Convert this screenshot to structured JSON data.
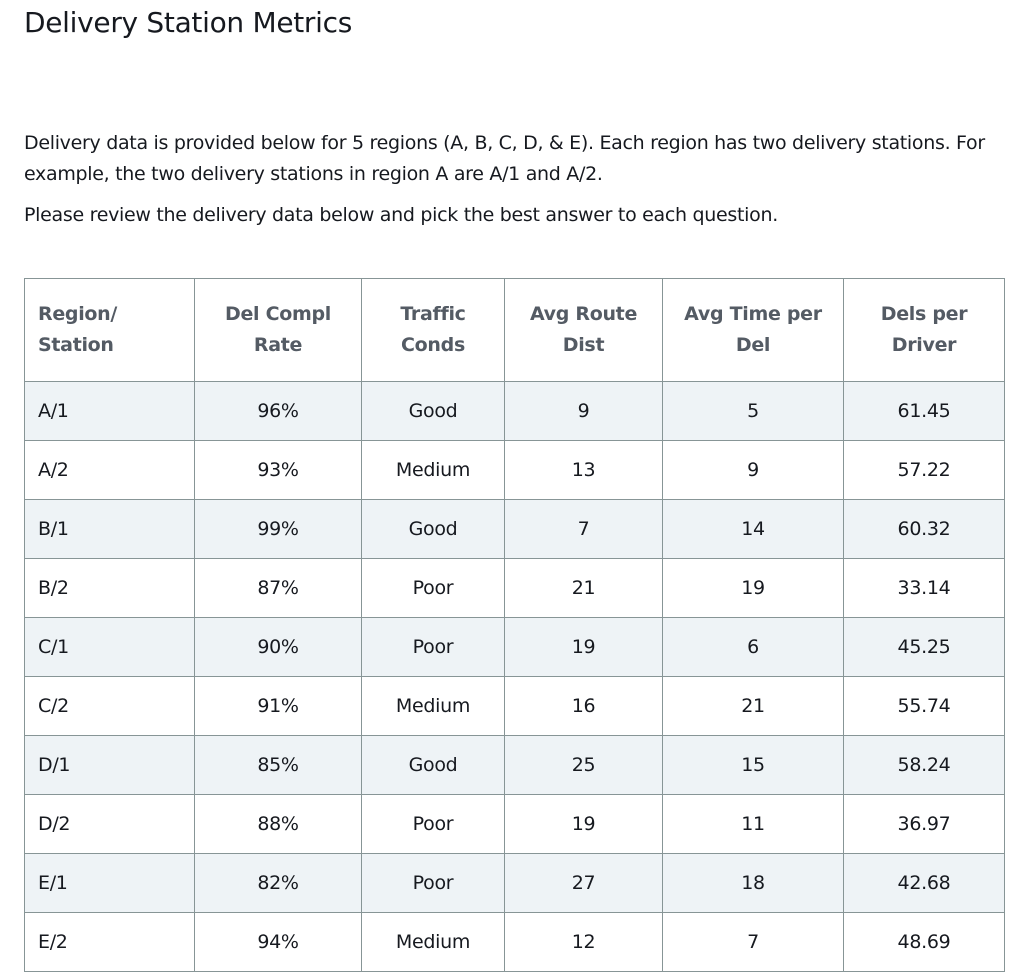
{
  "page": {
    "title": "Delivery Station Metrics",
    "intro": "Delivery data is provided below for 5 regions (A, B, C, D, & E). Each region has two delivery stations. For example, the two delivery stations in region A are A/1 and A/2.",
    "instructions": "Please review the delivery data below and pick the best answer to each question."
  },
  "table": {
    "headers": [
      [
        "Region/",
        "Station"
      ],
      [
        "Del Compl",
        "Rate"
      ],
      [
        "Traffic",
        "Conds"
      ],
      [
        "Avg Route",
        "Dist"
      ],
      [
        "Avg Time per",
        "Del"
      ],
      [
        "Dels per",
        "Driver"
      ]
    ],
    "rows": [
      [
        "A/1",
        "96%",
        "Good",
        "9",
        "5",
        "61.45"
      ],
      [
        "A/2",
        "93%",
        "Medium",
        "13",
        "9",
        "57.22"
      ],
      [
        "B/1",
        "99%",
        "Good",
        "7",
        "14",
        "60.32"
      ],
      [
        "B/2",
        "87%",
        "Poor",
        "21",
        "19",
        "33.14"
      ],
      [
        "C/1",
        "90%",
        "Poor",
        "19",
        "6",
        "45.25"
      ],
      [
        "C/2",
        "91%",
        "Medium",
        "16",
        "21",
        "55.74"
      ],
      [
        "D/1",
        "85%",
        "Good",
        "25",
        "15",
        "58.24"
      ],
      [
        "D/2",
        "88%",
        "Poor",
        "19",
        "11",
        "36.97"
      ],
      [
        "E/1",
        "82%",
        "Poor",
        "27",
        "18",
        "42.68"
      ],
      [
        "E/2",
        "94%",
        "Medium",
        "12",
        "7",
        "48.69"
      ]
    ]
  },
  "colors": {
    "text": "#16191f",
    "header_text": "#545b64",
    "border": "#879596",
    "stripe": "#eef3f6"
  }
}
